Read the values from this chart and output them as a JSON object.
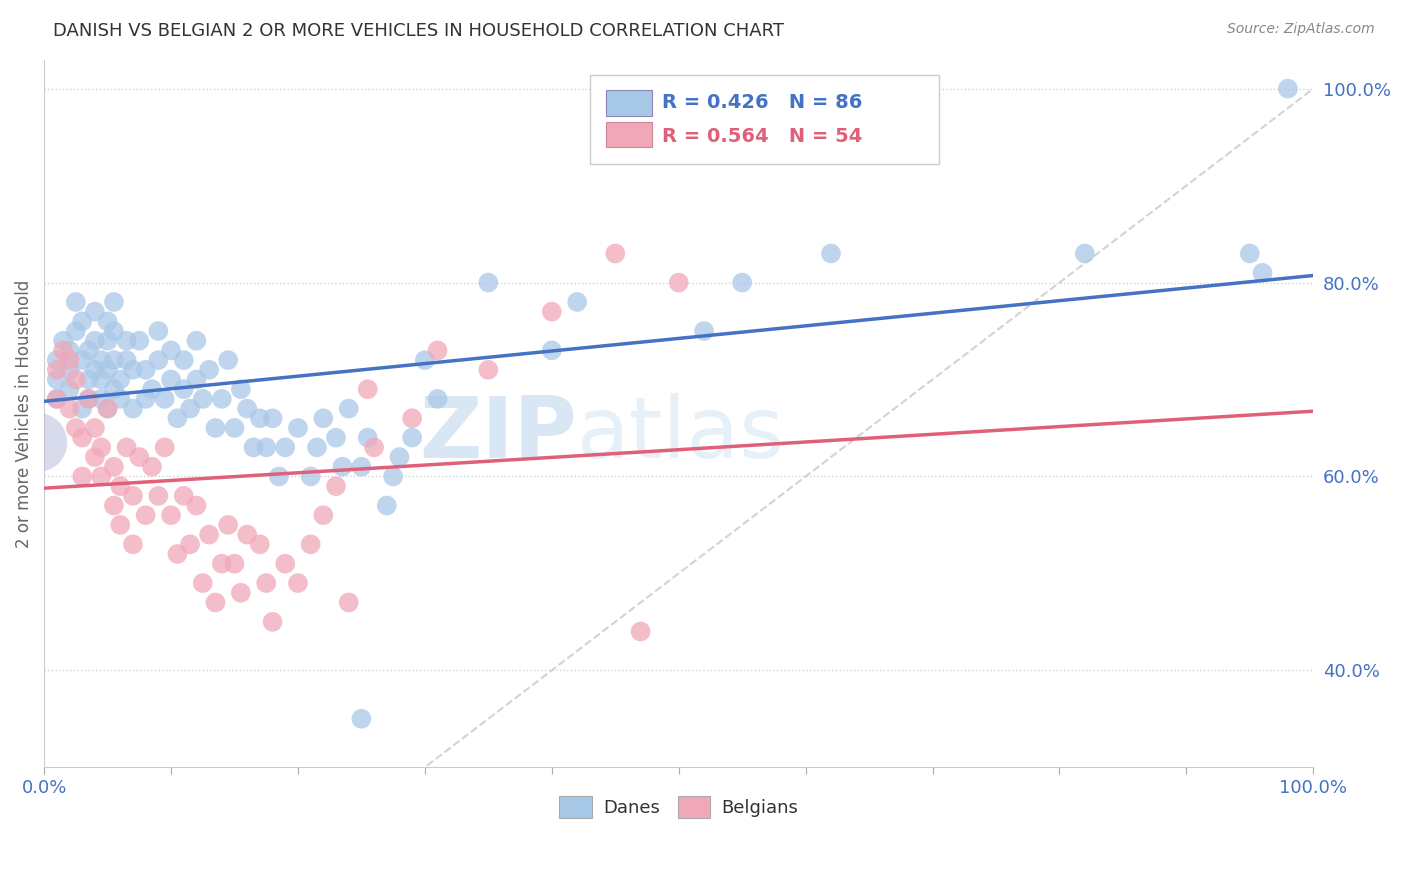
{
  "title": "DANISH VS BELGIAN 2 OR MORE VEHICLES IN HOUSEHOLD CORRELATION CHART",
  "source": "Source: ZipAtlas.com",
  "ylabel": "2 or more Vehicles in Household",
  "danes_color": "#a8c8e8",
  "belgians_color": "#f0a8b8",
  "danes_R": "0.426",
  "danes_N": "86",
  "belgians_R": "0.564",
  "belgians_N": "54",
  "trend_danes_color": "#4472c4",
  "trend_belgians_color": "#e0607a",
  "danes_legend_color": "#a8c8e8",
  "belgians_legend_color": "#f0a8b8",
  "danes_scatter": [
    [
      0.01,
      0.68
    ],
    [
      0.01,
      0.7
    ],
    [
      0.01,
      0.72
    ],
    [
      0.015,
      0.74
    ],
    [
      0.02,
      0.69
    ],
    [
      0.02,
      0.71
    ],
    [
      0.02,
      0.73
    ],
    [
      0.025,
      0.75
    ],
    [
      0.025,
      0.78
    ],
    [
      0.03,
      0.67
    ],
    [
      0.03,
      0.72
    ],
    [
      0.03,
      0.76
    ],
    [
      0.035,
      0.68
    ],
    [
      0.035,
      0.7
    ],
    [
      0.035,
      0.73
    ],
    [
      0.04,
      0.71
    ],
    [
      0.04,
      0.74
    ],
    [
      0.04,
      0.77
    ],
    [
      0.045,
      0.68
    ],
    [
      0.045,
      0.7
    ],
    [
      0.045,
      0.72
    ],
    [
      0.05,
      0.67
    ],
    [
      0.05,
      0.71
    ],
    [
      0.05,
      0.74
    ],
    [
      0.05,
      0.76
    ],
    [
      0.055,
      0.69
    ],
    [
      0.055,
      0.72
    ],
    [
      0.055,
      0.75
    ],
    [
      0.055,
      0.78
    ],
    [
      0.06,
      0.68
    ],
    [
      0.06,
      0.7
    ],
    [
      0.065,
      0.72
    ],
    [
      0.065,
      0.74
    ],
    [
      0.07,
      0.67
    ],
    [
      0.07,
      0.71
    ],
    [
      0.075,
      0.74
    ],
    [
      0.08,
      0.68
    ],
    [
      0.08,
      0.71
    ],
    [
      0.085,
      0.69
    ],
    [
      0.09,
      0.72
    ],
    [
      0.09,
      0.75
    ],
    [
      0.095,
      0.68
    ],
    [
      0.1,
      0.7
    ],
    [
      0.1,
      0.73
    ],
    [
      0.105,
      0.66
    ],
    [
      0.11,
      0.69
    ],
    [
      0.11,
      0.72
    ],
    [
      0.115,
      0.67
    ],
    [
      0.12,
      0.7
    ],
    [
      0.12,
      0.74
    ],
    [
      0.125,
      0.68
    ],
    [
      0.13,
      0.71
    ],
    [
      0.135,
      0.65
    ],
    [
      0.14,
      0.68
    ],
    [
      0.145,
      0.72
    ],
    [
      0.15,
      0.65
    ],
    [
      0.155,
      0.69
    ],
    [
      0.16,
      0.67
    ],
    [
      0.165,
      0.63
    ],
    [
      0.17,
      0.66
    ],
    [
      0.175,
      0.63
    ],
    [
      0.18,
      0.66
    ],
    [
      0.185,
      0.6
    ],
    [
      0.19,
      0.63
    ],
    [
      0.2,
      0.65
    ],
    [
      0.21,
      0.6
    ],
    [
      0.215,
      0.63
    ],
    [
      0.22,
      0.66
    ],
    [
      0.23,
      0.64
    ],
    [
      0.235,
      0.61
    ],
    [
      0.24,
      0.67
    ],
    [
      0.25,
      0.61
    ],
    [
      0.255,
      0.64
    ],
    [
      0.27,
      0.57
    ],
    [
      0.275,
      0.6
    ],
    [
      0.28,
      0.62
    ],
    [
      0.29,
      0.64
    ],
    [
      0.3,
      0.72
    ],
    [
      0.31,
      0.68
    ],
    [
      0.35,
      0.8
    ],
    [
      0.4,
      0.73
    ],
    [
      0.42,
      0.78
    ],
    [
      0.52,
      0.75
    ],
    [
      0.55,
      0.8
    ],
    [
      0.62,
      0.83
    ],
    [
      0.82,
      0.83
    ],
    [
      0.95,
      0.83
    ],
    [
      0.96,
      0.81
    ],
    [
      0.98,
      1.0
    ],
    [
      0.25,
      0.35
    ]
  ],
  "belgians_scatter": [
    [
      0.01,
      0.68
    ],
    [
      0.01,
      0.71
    ],
    [
      0.015,
      0.73
    ],
    [
      0.02,
      0.67
    ],
    [
      0.02,
      0.72
    ],
    [
      0.025,
      0.65
    ],
    [
      0.025,
      0.7
    ],
    [
      0.03,
      0.6
    ],
    [
      0.03,
      0.64
    ],
    [
      0.035,
      0.68
    ],
    [
      0.04,
      0.62
    ],
    [
      0.04,
      0.65
    ],
    [
      0.045,
      0.6
    ],
    [
      0.045,
      0.63
    ],
    [
      0.05,
      0.67
    ],
    [
      0.055,
      0.57
    ],
    [
      0.055,
      0.61
    ],
    [
      0.06,
      0.55
    ],
    [
      0.06,
      0.59
    ],
    [
      0.065,
      0.63
    ],
    [
      0.07,
      0.53
    ],
    [
      0.07,
      0.58
    ],
    [
      0.075,
      0.62
    ],
    [
      0.08,
      0.56
    ],
    [
      0.085,
      0.61
    ],
    [
      0.09,
      0.58
    ],
    [
      0.095,
      0.63
    ],
    [
      0.1,
      0.56
    ],
    [
      0.105,
      0.52
    ],
    [
      0.11,
      0.58
    ],
    [
      0.115,
      0.53
    ],
    [
      0.12,
      0.57
    ],
    [
      0.125,
      0.49
    ],
    [
      0.13,
      0.54
    ],
    [
      0.135,
      0.47
    ],
    [
      0.14,
      0.51
    ],
    [
      0.145,
      0.55
    ],
    [
      0.15,
      0.51
    ],
    [
      0.155,
      0.48
    ],
    [
      0.16,
      0.54
    ],
    [
      0.17,
      0.53
    ],
    [
      0.175,
      0.49
    ],
    [
      0.18,
      0.45
    ],
    [
      0.19,
      0.51
    ],
    [
      0.2,
      0.49
    ],
    [
      0.21,
      0.53
    ],
    [
      0.22,
      0.56
    ],
    [
      0.23,
      0.59
    ],
    [
      0.24,
      0.47
    ],
    [
      0.255,
      0.69
    ],
    [
      0.26,
      0.63
    ],
    [
      0.29,
      0.66
    ],
    [
      0.31,
      0.73
    ],
    [
      0.35,
      0.71
    ],
    [
      0.4,
      0.77
    ],
    [
      0.45,
      0.83
    ],
    [
      0.47,
      0.44
    ],
    [
      0.5,
      0.8
    ]
  ],
  "xlim": [
    0.0,
    1.0
  ],
  "ylim": [
    0.3,
    1.03
  ],
  "diag_line_color": "#c8c8c8",
  "watermark_zip": "ZIP",
  "watermark_atlas": "atlas",
  "watermark_color": "#c8dff0",
  "bg_color": "#ffffff",
  "grid_color": "#cccccc"
}
